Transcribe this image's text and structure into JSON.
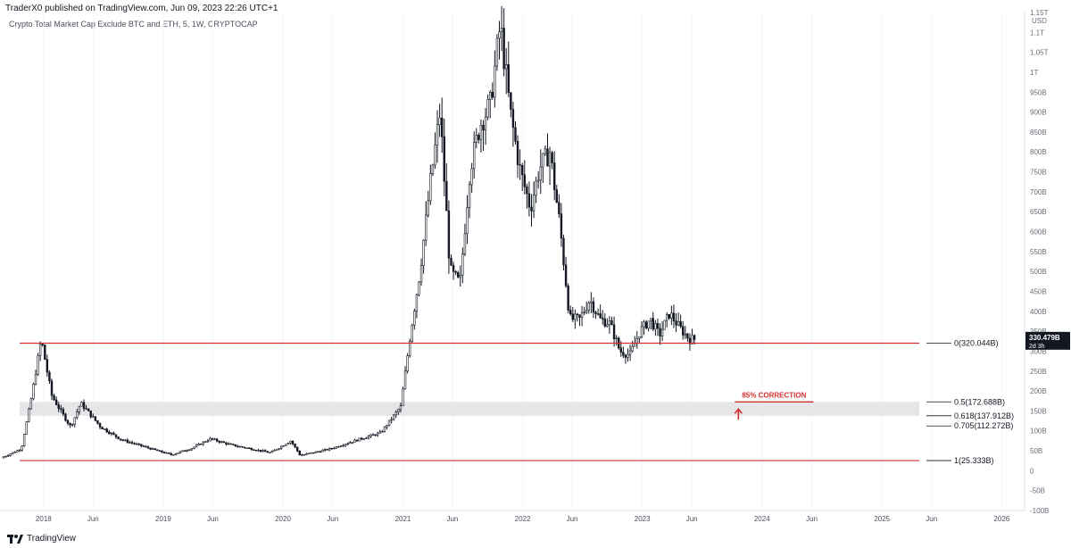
{
  "header": {
    "publish_text": "TraderX0 published on TradingView.com, Jun 09, 2023 22:26 UTC+1"
  },
  "chart_data": {
    "type": "candlestick",
    "title": "Crypto Total Market Cap Exclude BTC and ETH, 5, 1W, CRYPTOCAP",
    "currency_label": "USD",
    "y_axis_ticks": [
      "-100B",
      "-50B",
      "0",
      "50B",
      "100B",
      "150B",
      "200B",
      "250B",
      "300B",
      "350B",
      "400B",
      "450B",
      "500B",
      "550B",
      "600B",
      "650B",
      "700B",
      "750B",
      "800B",
      "850B",
      "900B",
      "950B",
      "1T",
      "1.05T",
      "1.1T",
      "1.15T"
    ],
    "ylim_billions": [
      -100,
      1150
    ],
    "x_axis_ticks": [
      "2018",
      "Jun",
      "2019",
      "Jun",
      "2020",
      "Jun",
      "2021",
      "Jun",
      "2022",
      "Jun",
      "2023",
      "Jun",
      "2024",
      "Jun",
      "2025",
      "Jun",
      "2026"
    ],
    "price_path_billions": [
      {
        "date": "2017-09",
        "value": 32
      },
      {
        "date": "2017-11",
        "value": 55
      },
      {
        "date": "2017-12",
        "value": 180
      },
      {
        "date": "2018-01",
        "value": 330
      },
      {
        "date": "2018-02",
        "value": 190
      },
      {
        "date": "2018-03",
        "value": 150
      },
      {
        "date": "2018-04",
        "value": 110
      },
      {
        "date": "2018-05",
        "value": 170
      },
      {
        "date": "2018-07",
        "value": 110
      },
      {
        "date": "2018-09",
        "value": 78
      },
      {
        "date": "2018-12",
        "value": 55
      },
      {
        "date": "2019-02",
        "value": 40
      },
      {
        "date": "2019-04",
        "value": 55
      },
      {
        "date": "2019-06",
        "value": 80
      },
      {
        "date": "2019-08",
        "value": 65
      },
      {
        "date": "2019-10",
        "value": 55
      },
      {
        "date": "2019-12",
        "value": 45
      },
      {
        "date": "2020-02",
        "value": 75
      },
      {
        "date": "2020-03",
        "value": 38
      },
      {
        "date": "2020-06",
        "value": 55
      },
      {
        "date": "2020-09",
        "value": 80
      },
      {
        "date": "2020-11",
        "value": 95
      },
      {
        "date": "2021-01",
        "value": 160
      },
      {
        "date": "2021-02",
        "value": 350
      },
      {
        "date": "2021-03",
        "value": 500
      },
      {
        "date": "2021-04",
        "value": 720
      },
      {
        "date": "2021-05",
        "value": 900
      },
      {
        "date": "2021-06",
        "value": 500
      },
      {
        "date": "2021-07",
        "value": 470
      },
      {
        "date": "2021-08",
        "value": 760
      },
      {
        "date": "2021-09",
        "value": 870
      },
      {
        "date": "2021-10",
        "value": 920
      },
      {
        "date": "2021-11",
        "value": 1120
      },
      {
        "date": "2021-12",
        "value": 900
      },
      {
        "date": "2022-01",
        "value": 750
      },
      {
        "date": "2022-02",
        "value": 660
      },
      {
        "date": "2022-03",
        "value": 760
      },
      {
        "date": "2022-04",
        "value": 800
      },
      {
        "date": "2022-05",
        "value": 620
      },
      {
        "date": "2022-06",
        "value": 380
      },
      {
        "date": "2022-07",
        "value": 380
      },
      {
        "date": "2022-08",
        "value": 430
      },
      {
        "date": "2022-09",
        "value": 380
      },
      {
        "date": "2022-10",
        "value": 370
      },
      {
        "date": "2022-11",
        "value": 300
      },
      {
        "date": "2022-12",
        "value": 290
      },
      {
        "date": "2023-01",
        "value": 350
      },
      {
        "date": "2023-02",
        "value": 380
      },
      {
        "date": "2023-03",
        "value": 340
      },
      {
        "date": "2023-04",
        "value": 395
      },
      {
        "date": "2023-05",
        "value": 360
      },
      {
        "date": "2023-06",
        "value": 330
      }
    ],
    "last_price_label": "330.479B",
    "countdown_label": "2d 3h",
    "fib_levels": [
      {
        "label": "0(320.044B)",
        "value_billions": 320.044,
        "color": "#d32f2f"
      },
      {
        "label": "0.5(172.688B)",
        "value_billions": 172.688,
        "color": "#131722"
      },
      {
        "label": "0.618(137.912B)",
        "value_billions": 137.912,
        "color": "#131722"
      },
      {
        "label": "0.705(112.272B)",
        "value_billions": 112.272,
        "color": "#131722"
      },
      {
        "label": "1(25.333B)",
        "value_billions": 25.333,
        "color": "#d32f2f"
      }
    ],
    "zone_billions": [
      137.912,
      172.688
    ],
    "annotation": {
      "text": "85% CORRECTION",
      "date": "2023-11",
      "value_billions": 172.688,
      "color": "#d32f2f"
    }
  },
  "footer": {
    "brand": "TradingView"
  }
}
